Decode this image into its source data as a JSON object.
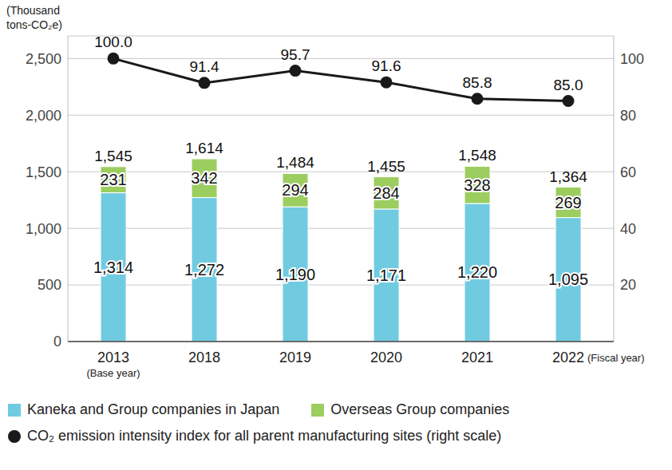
{
  "chart_data": {
    "type": "bar",
    "stacked": true,
    "data_labels": true,
    "grid": true,
    "y_label": "(Thousand tons-CO₂e)",
    "x_label": "(Fiscal year)",
    "annotations": [
      {
        "text": "(Base year)",
        "category": "2013"
      }
    ],
    "categories": [
      "2013",
      "2018",
      "2019",
      "2020",
      "2021",
      "2022"
    ],
    "series": [
      {
        "name": "Kaneka and Group companies in Japan",
        "type": "bar",
        "color": "#70cbe1",
        "values": [
          1314,
          1272,
          1190,
          1171,
          1220,
          1095
        ],
        "value_labels": [
          "1,314",
          "1,272",
          "1,190",
          "1,171",
          "1,220",
          "1,095"
        ]
      },
      {
        "name": "Overseas Group companies",
        "type": "bar",
        "color": "#9ccd5f",
        "values": [
          231,
          342,
          294,
          284,
          328,
          269
        ]
      },
      {
        "name": "CO₂ emission intensity index for all parent manufacturing sites (right scale)",
        "type": "line",
        "axis": "y2",
        "color": "#1a1a1a",
        "marker": "circle",
        "values": [
          100.0,
          91.4,
          95.7,
          91.6,
          85.8,
          85.0
        ],
        "value_labels": [
          "100.0",
          "91.4",
          "95.7",
          "91.6",
          "85.8",
          "85.0"
        ]
      }
    ],
    "totals": {
      "values": [
        1545,
        1614,
        1484,
        1455,
        1548,
        1364
      ],
      "value_labels": [
        "1,545",
        "1,614",
        "1,484",
        "1,455",
        "1,548",
        "1,364"
      ]
    },
    "ylim": [
      0,
      2700
    ],
    "yticks": [
      0,
      500,
      {
        "value": 1000,
        "label": "1,000"
      },
      {
        "value": 1500,
        "label": "1,500"
      },
      {
        "value": 2000,
        "label": "2,000"
      },
      {
        "value": 2500,
        "label": "2,500"
      }
    ],
    "y2lim": [
      0,
      108
    ],
    "y2ticks": [
      20,
      40,
      60,
      80,
      100
    ]
  }
}
